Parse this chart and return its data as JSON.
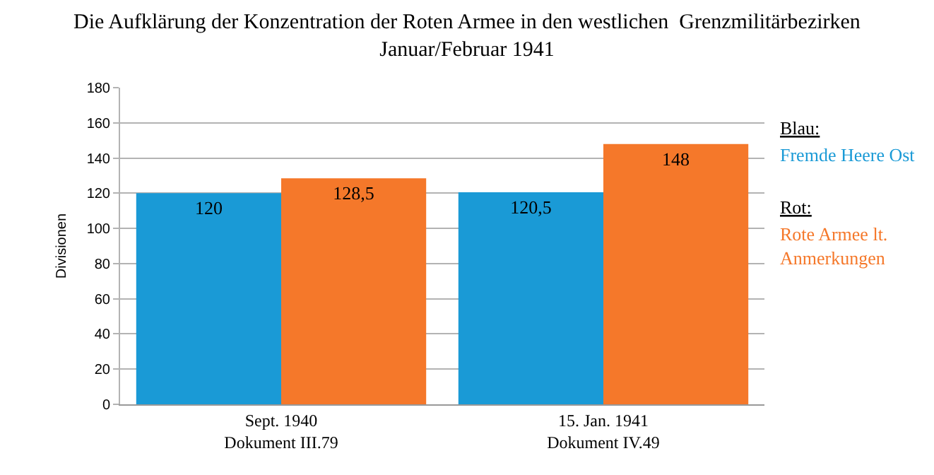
{
  "chart_data": {
    "type": "bar",
    "title": "Die Aufklärung der Konzentration der Roten Armee in den westlichen  Grenzmilitärbezirken\nJanuar/Februar 1941",
    "ylabel": "Divisionen",
    "categories": [
      "Sept. 1940\nDokument III.79",
      "15. Jan. 1941\nDokument IV.49"
    ],
    "series": [
      {
        "name": "Fremde Heere Ost",
        "color": "#1a9ad6",
        "values": [
          120,
          120.5
        ],
        "value_labels": [
          "120",
          "120,5"
        ]
      },
      {
        "name": "Rote Armee lt. Anmerkungen",
        "color": "#f5782a",
        "values": [
          128.5,
          148
        ],
        "value_labels": [
          "128,5",
          "148"
        ]
      }
    ],
    "annotations": [
      "Blau:",
      "Rot:"
    ],
    "ylim": [
      0,
      180
    ],
    "yticks": [
      0,
      20,
      40,
      60,
      80,
      100,
      120,
      140,
      160,
      180
    ],
    "grid": "y"
  }
}
